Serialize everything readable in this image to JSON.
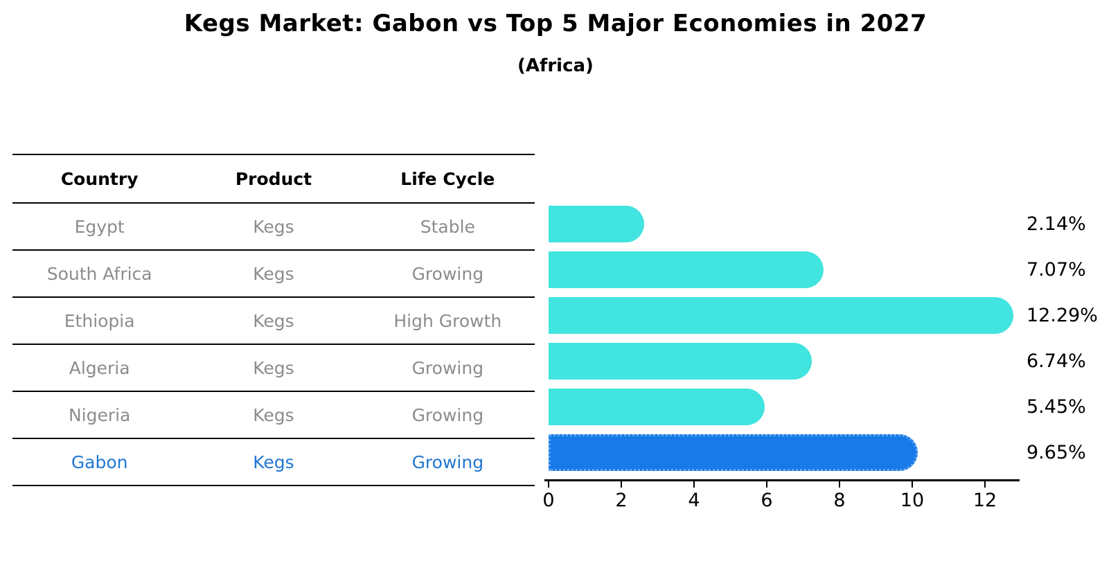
{
  "title": "Kegs Market: Gabon vs Top 5 Major Economies in 2027",
  "subtitle": "(Africa)",
  "table": {
    "headers": [
      "Country",
      "Product",
      "Life Cycle"
    ],
    "rows": [
      {
        "country": "Egypt",
        "product": "Kegs",
        "life_cycle": "Stable"
      },
      {
        "country": "South Africa",
        "product": "Kegs",
        "life_cycle": "Growing"
      },
      {
        "country": "Ethiopia",
        "product": "Kegs",
        "life_cycle": "High Growth"
      },
      {
        "country": "Algeria",
        "product": "Kegs",
        "life_cycle": "Growing"
      },
      {
        "country": "Nigeria",
        "product": "Kegs",
        "life_cycle": "Growing"
      },
      {
        "country": "Gabon",
        "product": "Kegs",
        "life_cycle": "Growing"
      }
    ]
  },
  "chart_data": {
    "type": "bar",
    "orientation": "horizontal",
    "title": "Kegs Market: Gabon vs Top 5 Major Economies in 2027",
    "subtitle": "(Africa)",
    "categories": [
      "Egypt",
      "South Africa",
      "Ethiopia",
      "Algeria",
      "Nigeria",
      "Gabon"
    ],
    "values": [
      2.14,
      7.07,
      12.29,
      6.74,
      5.45,
      9.65
    ],
    "value_labels": [
      "2.14%",
      "7.07%",
      "12.29%",
      "6.74%",
      "5.45%",
      "9.65%"
    ],
    "x_ticks": [
      "0",
      "2",
      "4",
      "6",
      "8",
      "10",
      "12"
    ],
    "xlim": [
      0,
      12.9
    ],
    "grid": false,
    "legend": "none",
    "bar_color": "#42e4df",
    "highlight_color": "#187ae8",
    "highlight_index": 5,
    "highlight_category": "Gabon"
  },
  "colors": {
    "table_text": "#8c8c8c",
    "highlight_text": "#2177d2",
    "axis": "#000000",
    "background": "#ffffff"
  }
}
